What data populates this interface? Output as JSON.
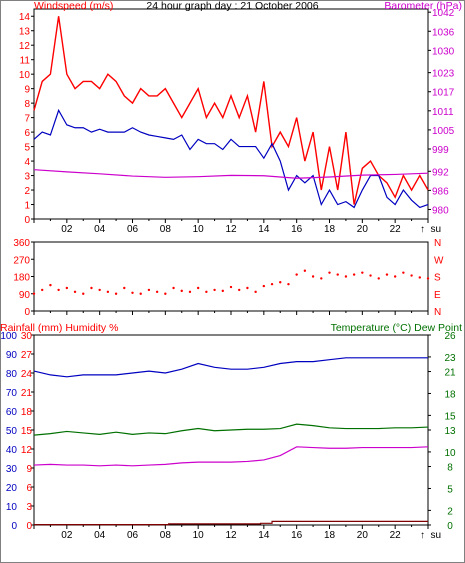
{
  "header": {
    "title": "24 hour graph day : 21 October 2006"
  },
  "colors": {
    "red": "#ff0000",
    "blue": "#0000c0",
    "magenta": "#cc00cc",
    "green": "#007000",
    "darkred": "#800000",
    "axis": "#000000",
    "grid": "#000000"
  },
  "x_axis": {
    "labels": [
      "02",
      "04",
      "06",
      "08",
      "10",
      "12",
      "14",
      "16",
      "18",
      "20",
      "22"
    ],
    "now_label": "↑  su"
  },
  "chart_data": [
    {
      "type": "line",
      "title": "24 hour graph day : 21 October 2006",
      "xlim": [
        0,
        24
      ],
      "left_axis": {
        "label": "Windspeed (m/s)",
        "ylim": [
          0,
          14.5
        ],
        "ticks": [
          0,
          1,
          2,
          3,
          4,
          5,
          6,
          7,
          8,
          9,
          10,
          11,
          12,
          13,
          14
        ]
      },
      "right_axis": {
        "label": "Barometer (hPa)",
        "ylim": [
          977,
          1043
        ],
        "ticks": [
          980,
          986,
          992,
          999,
          1005,
          1011,
          1017,
          1023,
          1030,
          1036,
          1042
        ]
      },
      "series": [
        {
          "name": "Windspeed (m/s)",
          "axis": "left",
          "color": "#ff0000",
          "x": [
            0.0,
            0.5,
            1.0,
            1.5,
            2.0,
            2.5,
            3.0,
            3.5,
            4.0,
            4.5,
            5.0,
            5.5,
            6.0,
            6.5,
            7.0,
            7.5,
            8.0,
            8.5,
            9.0,
            9.5,
            10.0,
            10.5,
            11.0,
            11.5,
            12.0,
            12.5,
            13.0,
            13.5,
            14.0,
            14.5,
            15.0,
            15.5,
            16.0,
            16.5,
            17.0,
            17.5,
            18.0,
            18.5,
            19.0,
            19.5,
            20.0,
            20.5,
            21.0,
            21.5,
            22.0,
            22.5,
            23.0,
            23.5,
            24.0
          ],
          "y": [
            7.5,
            9.5,
            10,
            14,
            10,
            9,
            9.5,
            9.5,
            9,
            10,
            9.5,
            8.5,
            8,
            9,
            8.5,
            8.5,
            9,
            8,
            7,
            8,
            9,
            7,
            8,
            7,
            8.5,
            7,
            8.5,
            6,
            9.5,
            5,
            6,
            5,
            7,
            4,
            6,
            2,
            5,
            2,
            6,
            1,
            3.5,
            4,
            3,
            2.5,
            1.5,
            3,
            2,
            3,
            2
          ]
        },
        {
          "name": "Wind gust",
          "axis": "left",
          "color": "#0000c0",
          "x": [
            0.0,
            0.5,
            1.0,
            1.5,
            2.0,
            2.5,
            3.0,
            3.5,
            4.0,
            4.5,
            5.0,
            5.5,
            6.0,
            6.5,
            7.0,
            7.5,
            8.0,
            8.5,
            9.0,
            9.5,
            10.0,
            10.5,
            11.0,
            11.5,
            12.0,
            12.5,
            13.0,
            13.5,
            14.0,
            14.5,
            15.0,
            15.5,
            16.0,
            16.5,
            17.0,
            17.5,
            18.0,
            18.5,
            19.0,
            19.5,
            20.0,
            20.5,
            21.0,
            21.5,
            22.0,
            22.5,
            23.0,
            23.5,
            24.0
          ],
          "y": [
            5.5,
            6,
            5.8,
            7.5,
            6.5,
            6.3,
            6.3,
            6,
            6.2,
            6,
            6,
            6,
            6.3,
            6,
            5.8,
            5.7,
            5.6,
            5.5,
            5.8,
            4.8,
            5.5,
            5.2,
            5.2,
            4.8,
            5.5,
            5,
            5,
            5,
            4.2,
            5.2,
            4,
            2,
            3,
            2.5,
            3,
            1,
            2,
            1,
            1.2,
            0.8,
            2,
            3,
            3,
            1.5,
            1,
            2,
            1.3,
            0.8,
            1
          ]
        },
        {
          "name": "Barometer (hPa)",
          "axis": "right",
          "color": "#cc00cc",
          "x": [
            0,
            2,
            4,
            6,
            8,
            10,
            12,
            14,
            16,
            18,
            20,
            22,
            24
          ],
          "y": [
            992.5,
            991.8,
            991.2,
            990.5,
            990.1,
            990.3,
            990.7,
            990.6,
            989.8,
            990.2,
            990.8,
            991.0,
            991.4
          ]
        }
      ]
    },
    {
      "type": "scatter",
      "left_axis": {
        "label": "",
        "ylim": [
          0,
          360
        ],
        "ticks": [
          0,
          90,
          180,
          270,
          360
        ]
      },
      "right_axis": {
        "label": "",
        "ticks": [
          "N",
          "E",
          "S",
          "W",
          "N"
        ]
      },
      "series": [
        {
          "name": "Wind direction",
          "color": "#ff0000",
          "axis": "left",
          "x": [
            0.0,
            0.5,
            1.0,
            1.5,
            2.0,
            2.5,
            3.0,
            3.5,
            4.0,
            4.5,
            5.0,
            5.5,
            6.0,
            6.5,
            7.0,
            7.5,
            8.0,
            8.5,
            9.0,
            9.5,
            10.0,
            10.5,
            11.0,
            11.5,
            12.0,
            12.5,
            13.0,
            13.5,
            14.0,
            14.5,
            15.0,
            15.5,
            16.0,
            16.5,
            17.0,
            17.5,
            18.0,
            18.5,
            19.0,
            19.5,
            20.0,
            20.5,
            21.0,
            21.5,
            22.0,
            22.5,
            23.0,
            23.5,
            24.0
          ],
          "y": [
            90,
            110,
            135,
            110,
            120,
            100,
            90,
            120,
            110,
            100,
            90,
            120,
            95,
            90,
            110,
            100,
            90,
            120,
            105,
            100,
            120,
            100,
            110,
            105,
            125,
            110,
            120,
            100,
            130,
            140,
            150,
            140,
            190,
            210,
            180,
            170,
            200,
            190,
            180,
            190,
            200,
            185,
            170,
            190,
            180,
            200,
            185,
            175,
            170
          ]
        }
      ]
    },
    {
      "type": "line",
      "left_axis": {
        "label": "Rainfall (mm)  Humidity %",
        "ylim": [
          0,
          100
        ],
        "ticks": [
          0,
          10,
          20,
          30,
          40,
          50,
          60,
          70,
          80,
          90,
          100
        ],
        "inner_ticks": [
          0,
          3,
          6,
          9,
          12,
          15,
          18,
          21,
          24,
          27,
          30
        ]
      },
      "right_axis": {
        "label": "Temperature (°C) Dew Point",
        "ylim": [
          0,
          26
        ],
        "ticks": [
          0,
          2,
          5,
          8,
          10,
          13,
          15,
          18,
          21,
          23,
          26
        ]
      },
      "series": [
        {
          "name": "Humidity %",
          "axis": "left",
          "color": "#0000c0",
          "x": [
            0,
            1,
            2,
            3,
            4,
            5,
            6,
            7,
            8,
            9,
            10,
            11,
            12,
            13,
            14,
            15,
            16,
            17,
            18,
            19,
            20,
            21,
            22,
            23,
            24
          ],
          "y": [
            81,
            79,
            78,
            79,
            79,
            79,
            80,
            81,
            80,
            82,
            85,
            83,
            82,
            82,
            83,
            85,
            86,
            86,
            87,
            88,
            88,
            88,
            88,
            88,
            88
          ]
        },
        {
          "name": "Temperature (°C)",
          "axis": "right",
          "color": "#007000",
          "x": [
            0,
            1,
            2,
            3,
            4,
            5,
            6,
            7,
            8,
            9,
            10,
            11,
            12,
            13,
            14,
            15,
            16,
            17,
            18,
            19,
            20,
            21,
            22,
            23,
            24
          ],
          "y": [
            12.3,
            12.5,
            12.8,
            12.6,
            12.4,
            12.7,
            12.4,
            12.6,
            12.5,
            12.9,
            13.2,
            12.9,
            13.0,
            13.1,
            13.1,
            13.2,
            13.8,
            13.6,
            13.3,
            13.2,
            13.2,
            13.2,
            13.3,
            13.3,
            13.4
          ]
        },
        {
          "name": "Dew Point",
          "axis": "right",
          "color": "#cc00cc",
          "x": [
            0,
            1,
            2,
            3,
            4,
            5,
            6,
            7,
            8,
            9,
            10,
            11,
            12,
            13,
            14,
            15,
            16,
            17,
            18,
            19,
            20,
            21,
            22,
            23,
            24
          ],
          "y": [
            8.2,
            8.3,
            8.2,
            8.2,
            8.1,
            8.2,
            8.1,
            8.2,
            8.3,
            8.5,
            8.6,
            8.6,
            8.6,
            8.7,
            8.9,
            9.5,
            10.7,
            10.6,
            10.5,
            10.5,
            10.6,
            10.6,
            10.6,
            10.6,
            10.7
          ]
        },
        {
          "name": "Rainfall (mm)",
          "axis": "left",
          "color": "#800000",
          "step": true,
          "x": [
            0,
            8.2,
            8.2,
            13.8,
            13.8,
            14.5,
            14.5,
            24
          ],
          "y": [
            0.2,
            0.2,
            0.6,
            0.6,
            0.9,
            0.9,
            1.9,
            1.9
          ]
        }
      ]
    }
  ]
}
